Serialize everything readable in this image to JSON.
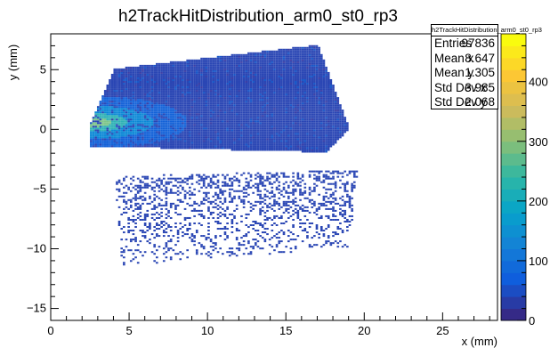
{
  "chart_data": {
    "type": "heatmap",
    "title": "h2TrackHitDistribution_arm0_st0_rp3",
    "xlabel": "x (mm)",
    "ylabel": "y (mm)",
    "xlim": [
      0,
      28.5
    ],
    "ylim": [
      -16,
      8
    ],
    "x_ticks": [
      "0",
      "5",
      "10",
      "15",
      "20",
      "25"
    ],
    "y_ticks": [
      "5",
      "0",
      "−5",
      "−10",
      "−15"
    ],
    "z_range": [
      0,
      480
    ],
    "z_ticks": [
      "0",
      "100",
      "200",
      "300",
      "400"
    ],
    "palette": [
      "#352a87",
      "#0f5cdd",
      "#1481d6",
      "#06a4ca",
      "#2eb7a4",
      "#87bf77",
      "#d1bb59",
      "#fec832",
      "#f9fb0e"
    ],
    "distribution": {
      "description_points": {
        "dense_region": [
          [
            2.5,
            0.5
          ],
          [
            4,
            5
          ],
          [
            17,
            7
          ],
          [
            19,
            0
          ],
          [
            17.5,
            -2
          ],
          [
            2.5,
            -1.5
          ]
        ],
        "sparse_region": [
          [
            4,
            -4
          ],
          [
            19.5,
            -3.5
          ],
          [
            19,
            -10
          ],
          [
            4.5,
            -11.5
          ]
        ],
        "hot_spot": [
          2.8,
          0.5
        ]
      }
    },
    "stats": {
      "title": "h2TrackHitDistribution_arm0_st0_rp3",
      "rows": [
        {
          "label": "Entries",
          "value": "97836"
        },
        {
          "label": "Mean x",
          "value": "8.647"
        },
        {
          "label": "Mean y",
          "value": "1.305"
        },
        {
          "label": "Std Dev x",
          "value": "3.985"
        },
        {
          "label": "Std Dev y",
          "value": "2.068"
        }
      ]
    }
  }
}
